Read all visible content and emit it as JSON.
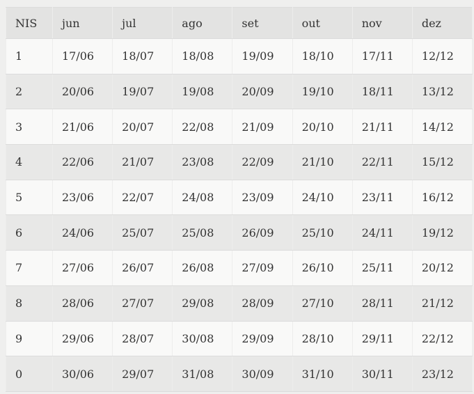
{
  "table": {
    "columns": [
      "NIS",
      "jun",
      "jul",
      "ago",
      "set",
      "out",
      "nov",
      "dez"
    ],
    "rows": [
      [
        "1",
        "17/06",
        "18/07",
        "18/08",
        "19/09",
        "18/10",
        "17/11",
        "12/12"
      ],
      [
        "2",
        "20/06",
        "19/07",
        "19/08",
        "20/09",
        "19/10",
        "18/11",
        "13/12"
      ],
      [
        "3",
        "21/06",
        "20/07",
        "22/08",
        "21/09",
        "20/10",
        "21/11",
        "14/12"
      ],
      [
        "4",
        "22/06",
        "21/07",
        "23/08",
        "22/09",
        "21/10",
        "22/11",
        "15/12"
      ],
      [
        "5",
        "23/06",
        "22/07",
        "24/08",
        "23/09",
        "24/10",
        "23/11",
        "16/12"
      ],
      [
        "6",
        "24/06",
        "25/07",
        "25/08",
        "26/09",
        "25/10",
        "24/11",
        "19/12"
      ],
      [
        "7",
        "27/06",
        "26/07",
        "26/08",
        "27/09",
        "26/10",
        "25/11",
        "20/12"
      ],
      [
        "8",
        "28/06",
        "27/07",
        "29/08",
        "28/09",
        "27/10",
        "28/11",
        "21/12"
      ],
      [
        "9",
        "29/06",
        "28/07",
        "30/08",
        "29/09",
        "28/10",
        "29/11",
        "22/12"
      ],
      [
        "0",
        "30/06",
        "29/07",
        "31/08",
        "30/09",
        "31/10",
        "30/11",
        "23/12"
      ]
    ],
    "colors": {
      "page_background": "#efefee",
      "header_background": "#e3e3e2",
      "row_odd_background": "#f9f9f8",
      "row_even_background": "#e8e8e7",
      "text": "#333333",
      "border_horizontal": "#dcdcdc",
      "border_vertical": "#ededec"
    }
  }
}
